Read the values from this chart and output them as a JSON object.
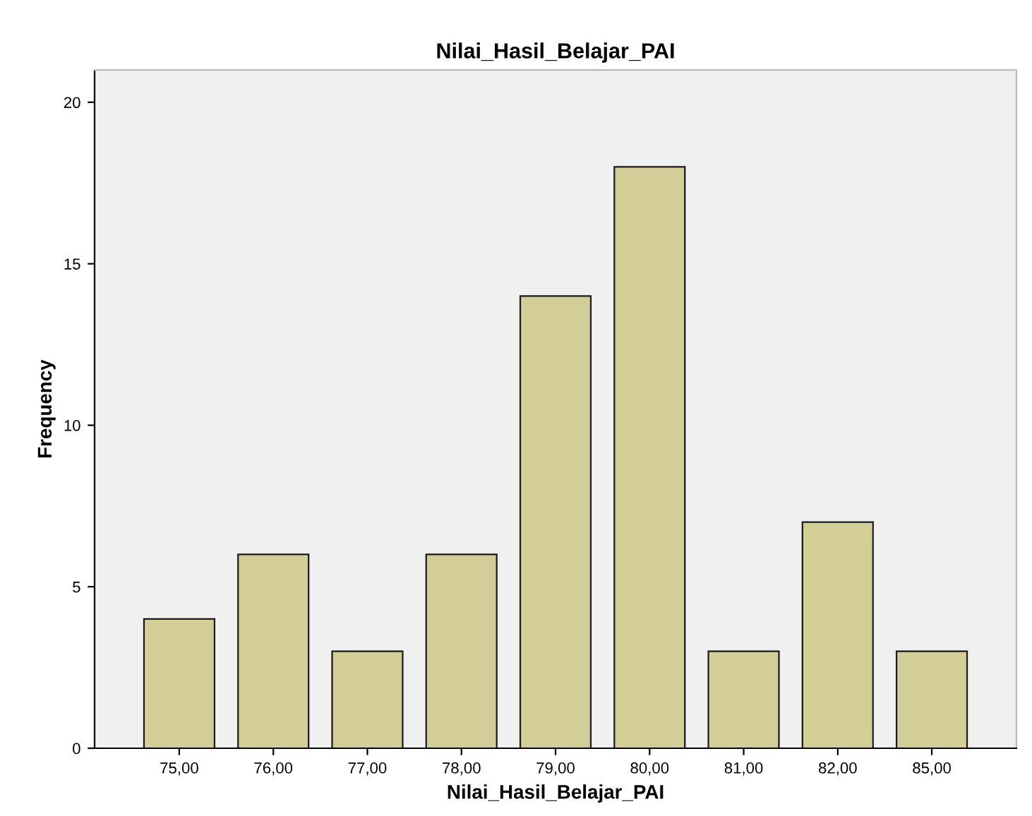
{
  "chart_data": {
    "type": "bar",
    "title": "Nilai_Hasil_Belajar_PAI",
    "xlabel": "Nilai_Hasil_Belajar_PAI",
    "ylabel": "Frequency",
    "categories": [
      "75,00",
      "76,00",
      "77,00",
      "78,00",
      "79,00",
      "80,00",
      "81,00",
      "82,00",
      "85,00"
    ],
    "values": [
      4,
      6,
      3,
      6,
      14,
      18,
      3,
      7,
      3
    ],
    "color": "#d3ce97",
    "ylim": [
      0,
      21
    ],
    "yticks": [
      0,
      5,
      10,
      15,
      20
    ],
    "grid": false,
    "legend": false
  }
}
